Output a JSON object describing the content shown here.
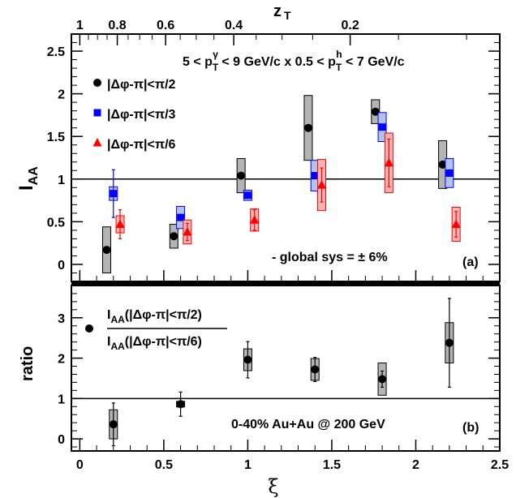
{
  "chart_data": [
    {
      "type": "scatter",
      "panel": "(a)",
      "xlabel": "ξ",
      "top_axis_label": "z_T",
      "top_axis_ticks": [
        "1",
        "0.8",
        "0.6",
        "0.4",
        "0.2"
      ],
      "top_axis_tick_values": [
        1.0,
        0.8,
        0.6,
        0.4,
        0.2
      ],
      "ylabel": "I_AA",
      "xlim": [
        -0.05,
        2.5
      ],
      "ylim": [
        -0.2,
        2.7
      ],
      "y_ticks": [
        0,
        0.5,
        1,
        1.5,
        2,
        2.5
      ],
      "reference_line_y": 1,
      "kinematics_label": "5 < pTγ < 9 GeV/c x 0.5 < pTh < 7 GeV/c",
      "kinematics_parts": {
        "a": "5 < p",
        "b": "T",
        "c": "γ",
        "d": " < 9 GeV/c x 0.5 < p",
        "e": "T",
        "f": "h",
        "g": " < 7 GeV/c"
      },
      "annotation": "- global sys = ± 6%",
      "legend_placement": "top-left",
      "series": [
        {
          "name": "|Δφ-π|<π/2",
          "marker": "circle",
          "color": "#000000",
          "box_fill": "#b4b4b4",
          "box_stroke": "#000000",
          "x": [
            0.16,
            0.56,
            0.96,
            1.36,
            1.76,
            2.16
          ],
          "y": [
            0.17,
            0.33,
            1.04,
            1.6,
            1.79,
            1.17
          ],
          "stat_err": [
            0.0,
            0.0,
            0.0,
            0.0,
            0.0,
            0.0
          ],
          "sys_err": [
            0.27,
            0.14,
            0.2,
            0.38,
            0.14,
            0.28
          ]
        },
        {
          "name": "|Δφ-π|<π/3",
          "marker": "square",
          "color": "#0000ff",
          "box_fill": "#b4c3ee",
          "box_stroke": "#0000ff",
          "x": [
            0.2,
            0.6,
            1.0,
            1.4,
            1.8,
            2.2
          ],
          "y": [
            0.83,
            0.55,
            0.81,
            1.04,
            1.61,
            1.07
          ],
          "stat_err": [
            0.28,
            0.0,
            0.0,
            0.0,
            0.0,
            0.0
          ],
          "sys_err": [
            0.08,
            0.13,
            0.06,
            0.18,
            0.17,
            0.17
          ]
        },
        {
          "name": "|Δφ-π|<π/6",
          "marker": "triangle",
          "color": "#ff0000",
          "box_fill": "#f2b5b5",
          "box_stroke": "#ff0000",
          "x": [
            0.24,
            0.64,
            1.04,
            1.44,
            1.84,
            2.24
          ],
          "y": [
            0.47,
            0.38,
            0.52,
            0.93,
            1.19,
            0.47
          ],
          "stat_err": [
            0.17,
            0.1,
            0.12,
            0.2,
            0.28,
            0.15
          ],
          "sys_err": [
            0.1,
            0.14,
            0.13,
            0.3,
            0.35,
            0.2
          ]
        }
      ]
    },
    {
      "type": "scatter",
      "panel": "(b)",
      "xlabel": "ξ",
      "ylabel": "ratio",
      "xlim": [
        -0.05,
        2.5
      ],
      "ylim": [
        -0.3,
        3.8
      ],
      "y_ticks": [
        0,
        1,
        2,
        3
      ],
      "x_ticks": [
        0,
        0.5,
        1,
        1.5,
        2,
        2.5
      ],
      "reference_line_y": 1,
      "annotation": "0-40% Au+Au @ 200 GeV",
      "legend": {
        "num_a": "I",
        "num_b": "AA",
        "num_c": "(|Δφ-π|<π/2)",
        "den_a": "I",
        "den_b": "AA",
        "den_c": "(|Δφ-π|<π/6)"
      },
      "series": [
        {
          "name": "I_AA(|Δφ-π|<π/2) / I_AA(|Δφ-π|<π/6)",
          "marker": "circle",
          "color": "#000000",
          "box_fill": "#b4b4b4",
          "box_stroke": "#000000",
          "x": [
            0.2,
            0.6,
            1.0,
            1.4,
            1.8,
            2.2
          ],
          "y": [
            0.36,
            0.86,
            1.96,
            1.72,
            1.48,
            2.38
          ],
          "stat_err": [
            0.53,
            0.3,
            0.45,
            0.3,
            0.2,
            1.1
          ],
          "sys_err": [
            0.36,
            0.07,
            0.27,
            0.27,
            0.4,
            0.5
          ]
        }
      ]
    }
  ]
}
